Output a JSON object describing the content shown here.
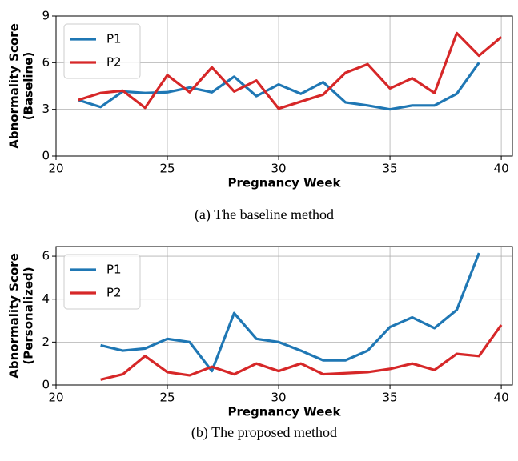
{
  "chart_data": [
    {
      "type": "line",
      "caption": "(a) The baseline method",
      "xlabel": "Pregnancy Week",
      "ylabel": [
        "Abnormality Score",
        "(Baseline)"
      ],
      "x": [
        21,
        22,
        23,
        24,
        25,
        26,
        27,
        28,
        29,
        30,
        31,
        32,
        33,
        34,
        35,
        36,
        37,
        38,
        39,
        40
      ],
      "series": [
        {
          "name": "P1",
          "color": "#1f77b4",
          "values": [
            3.6,
            3.15,
            4.15,
            4.05,
            4.1,
            4.4,
            4.1,
            5.1,
            3.85,
            4.6,
            4.0,
            4.75,
            3.45,
            3.25,
            3.0,
            3.25,
            3.25,
            4.0,
            6.0,
            null
          ]
        },
        {
          "name": "P2",
          "color": "#d62728",
          "values": [
            3.6,
            4.05,
            4.2,
            3.1,
            5.2,
            4.1,
            5.7,
            4.15,
            4.85,
            3.05,
            3.5,
            3.95,
            5.35,
            5.9,
            4.35,
            5.0,
            4.05,
            7.9,
            6.45,
            7.65
          ]
        }
      ],
      "xlim": [
        20,
        40.5
      ],
      "xticks": [
        20,
        25,
        30,
        35,
        40
      ],
      "ylim": [
        0,
        9
      ],
      "yticks": [
        0,
        3,
        6,
        9
      ],
      "grid": true,
      "legend": "upper-left"
    },
    {
      "type": "line",
      "caption": "(b) The proposed method",
      "xlabel": "Pregnancy Week",
      "ylabel": [
        "Abnormality Score",
        "(Personalized)"
      ],
      "x": [
        22,
        23,
        24,
        25,
        26,
        27,
        28,
        29,
        30,
        31,
        32,
        33,
        34,
        35,
        36,
        37,
        38,
        39,
        40
      ],
      "series": [
        {
          "name": "P1",
          "color": "#1f77b4",
          "values": [
            1.85,
            1.6,
            1.7,
            2.15,
            2.0,
            0.65,
            3.35,
            2.15,
            2.0,
            1.6,
            1.15,
            1.15,
            1.6,
            2.7,
            3.15,
            2.65,
            3.5,
            6.15,
            null
          ]
        },
        {
          "name": "P2",
          "color": "#d62728",
          "values": [
            0.25,
            0.5,
            1.35,
            0.6,
            0.45,
            0.85,
            0.5,
            1.0,
            0.65,
            1.0,
            0.5,
            0.55,
            0.6,
            0.75,
            1.0,
            0.7,
            1.45,
            1.35,
            2.8
          ]
        }
      ],
      "xlim": [
        20,
        40.5
      ],
      "xticks": [
        20,
        25,
        30,
        35,
        40
      ],
      "ylim": [
        0,
        6.45
      ],
      "yticks": [
        0,
        2,
        4,
        6
      ],
      "grid": true,
      "legend": "upper-left"
    }
  ]
}
